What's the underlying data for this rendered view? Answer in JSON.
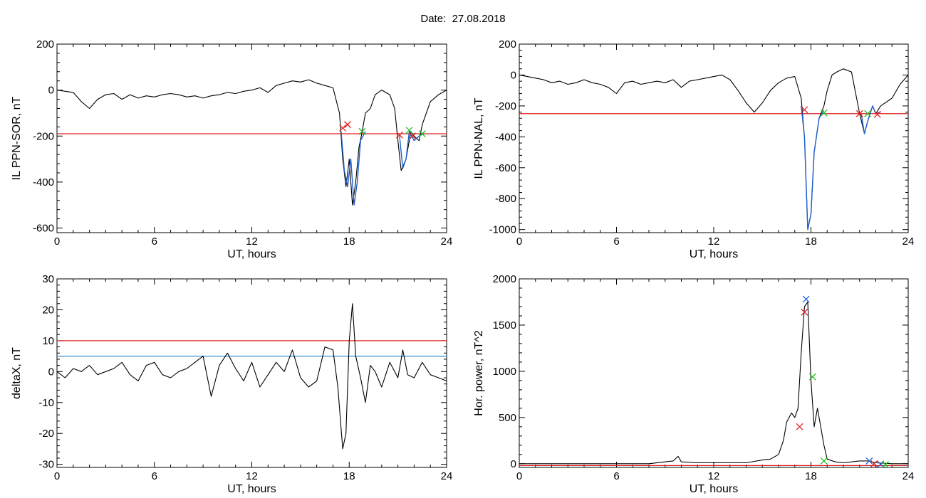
{
  "header": {
    "date_label": "Date:",
    "date_value": "27.08.2018"
  },
  "colors": {
    "trace": "#000000",
    "event": "#1f5fd0",
    "threshold_red": "#e02020",
    "threshold_blue": "#2a8fd0",
    "marker_red": "#e02020",
    "marker_green": "#20c020",
    "marker_blue": "#2060e0"
  },
  "chart_data": [
    {
      "type": "line",
      "xlabel": "UT, hours",
      "ylabel": "IL PPN-SOR, nT",
      "xlim": [
        0,
        24
      ],
      "ylim": [
        -620,
        200
      ],
      "xticks": [
        0,
        6,
        12,
        18,
        24
      ],
      "yticks": [
        200,
        0,
        -200,
        -400,
        -600
      ],
      "series": [
        {
          "color": "black",
          "x": [
            0,
            0.5,
            1,
            1.5,
            2,
            2.5,
            3,
            3.5,
            4,
            4.5,
            5,
            5.5,
            6,
            6.5,
            7,
            7.5,
            8,
            8.5,
            9,
            9.5,
            10,
            10.5,
            11,
            11.5,
            12,
            12.5,
            13,
            13.5,
            14,
            14.5,
            15,
            15.5,
            16,
            16.5,
            17,
            17.4,
            17.6,
            17.8,
            18,
            18.2,
            18.4,
            18.6,
            18.8,
            19,
            19.3,
            19.6,
            20,
            20.5,
            20.8,
            21,
            21.2,
            21.5,
            21.8,
            22,
            22.3,
            22.5,
            23,
            23.5,
            24
          ],
          "y": [
            0,
            -5,
            -10,
            -50,
            -80,
            -40,
            -20,
            -15,
            -40,
            -20,
            -35,
            -25,
            -30,
            -20,
            -15,
            -20,
            -30,
            -25,
            -35,
            -25,
            -20,
            -10,
            -15,
            -5,
            0,
            10,
            -10,
            20,
            30,
            40,
            35,
            45,
            30,
            20,
            10,
            -100,
            -300,
            -420,
            -300,
            -500,
            -400,
            -250,
            -180,
            -100,
            -80,
            -20,
            0,
            -20,
            -80,
            -220,
            -350,
            -300,
            -180,
            -200,
            -220,
            -150,
            -50,
            -20,
            0
          ]
        },
        {
          "color": "blue",
          "x": [
            17.5,
            17.7,
            17.9,
            18.1,
            18.3,
            18.5,
            18.7,
            19
          ],
          "y": [
            -180,
            -350,
            -420,
            -300,
            -500,
            -400,
            -220,
            -180
          ]
        },
        {
          "color": "blue",
          "x": [
            21.1,
            21.3,
            21.5,
            21.7,
            22,
            22.3,
            22.6
          ],
          "y": [
            -200,
            -340,
            -300,
            -180,
            -220,
            -200,
            -190
          ]
        }
      ],
      "hlines": [
        {
          "y": -190,
          "color": "red"
        }
      ],
      "markers": [
        {
          "x": 17.6,
          "y": -165,
          "color": "red"
        },
        {
          "x": 17.9,
          "y": -150,
          "color": "red"
        },
        {
          "x": 18.8,
          "y": -180,
          "color": "green"
        },
        {
          "x": 21.1,
          "y": -195,
          "color": "red"
        },
        {
          "x": 21.7,
          "y": -175,
          "color": "green"
        },
        {
          "x": 21.9,
          "y": -200,
          "color": "red"
        },
        {
          "x": 22.5,
          "y": -190,
          "color": "green"
        }
      ]
    },
    {
      "type": "line",
      "xlabel": "UT, hours",
      "ylabel": "IL PPN-NAL, nT",
      "xlim": [
        0,
        24
      ],
      "ylim": [
        -1020,
        200
      ],
      "xticks": [
        0,
        6,
        12,
        18,
        24
      ],
      "yticks": [
        200,
        0,
        -200,
        -400,
        -600,
        -800,
        -1000
      ],
      "series": [
        {
          "color": "black",
          "x": [
            0,
            0.5,
            1,
            1.5,
            2,
            2.5,
            3,
            3.5,
            4,
            4.5,
            5,
            5.5,
            6,
            6.5,
            7,
            7.5,
            8,
            8.5,
            9,
            9.5,
            10,
            10.5,
            11,
            11.5,
            12,
            12.5,
            13,
            13.5,
            14,
            14.5,
            15,
            15.5,
            16,
            16.5,
            17,
            17.4,
            17.6,
            17.8,
            18,
            18.2,
            18.5,
            18.8,
            19,
            19.3,
            19.6,
            20,
            20.5,
            21,
            21.3,
            21.5,
            21.8,
            22,
            22.3,
            23,
            23.5,
            24
          ],
          "y": [
            0,
            -10,
            -20,
            -30,
            -50,
            -40,
            -60,
            -50,
            -30,
            -50,
            -60,
            -80,
            -120,
            -50,
            -40,
            -60,
            -50,
            -40,
            -50,
            -30,
            -80,
            -40,
            -30,
            -20,
            -10,
            0,
            -30,
            -100,
            -180,
            -240,
            -180,
            -100,
            -50,
            -20,
            -10,
            -150,
            -400,
            -1000,
            -900,
            -500,
            -280,
            -200,
            -100,
            0,
            20,
            40,
            20,
            -250,
            -380,
            -300,
            -200,
            -250,
            -200,
            -150,
            -60,
            0
          ]
        },
        {
          "color": "blue",
          "x": [
            17.4,
            17.6,
            17.8,
            18,
            18.2,
            18.5,
            18.8
          ],
          "y": [
            -200,
            -400,
            -1000,
            -900,
            -500,
            -280,
            -230
          ]
        },
        {
          "color": "blue",
          "x": [
            21.1,
            21.3,
            21.5,
            21.8,
            22,
            22.3
          ],
          "y": [
            -250,
            -380,
            -300,
            -200,
            -250,
            -240
          ]
        }
      ],
      "hlines": [
        {
          "y": -250,
          "color": "red"
        }
      ],
      "markers": [
        {
          "x": 17.6,
          "y": -225,
          "color": "red"
        },
        {
          "x": 18.8,
          "y": -245,
          "color": "green"
        },
        {
          "x": 21.0,
          "y": -250,
          "color": "red"
        },
        {
          "x": 21.5,
          "y": -250,
          "color": "green"
        },
        {
          "x": 22.1,
          "y": -255,
          "color": "red"
        }
      ]
    },
    {
      "type": "line",
      "xlabel": "UT, hours",
      "ylabel": "deltaX, nT",
      "xlim": [
        0,
        24
      ],
      "ylim": [
        -31,
        30
      ],
      "xticks": [
        0,
        6,
        12,
        18,
        24
      ],
      "yticks": [
        30,
        20,
        10,
        0,
        -10,
        -20,
        -30
      ],
      "series": [
        {
          "color": "black",
          "x": [
            0,
            0.5,
            1,
            1.5,
            2,
            2.5,
            3,
            3.5,
            4,
            4.5,
            5,
            5.5,
            6,
            6.5,
            7,
            7.5,
            8,
            8.5,
            9,
            9.5,
            10,
            10.5,
            11,
            11.5,
            12,
            12.5,
            13,
            13.5,
            14,
            14.5,
            15,
            15.5,
            16,
            16.5,
            17,
            17.3,
            17.6,
            17.8,
            18,
            18.2,
            18.4,
            18.7,
            19,
            19.3,
            19.6,
            20,
            20.5,
            21,
            21.3,
            21.6,
            22,
            22.5,
            23,
            23.5,
            24
          ],
          "y": [
            0,
            -2,
            1,
            0,
            2,
            -1,
            0,
            1,
            3,
            -1,
            -3,
            2,
            3,
            -1,
            -2,
            0,
            1,
            3,
            5,
            -8,
            2,
            6,
            1,
            -3,
            3,
            -5,
            -1,
            3,
            0,
            7,
            -2,
            -5,
            -3,
            8,
            7,
            -5,
            -25,
            -20,
            10,
            22,
            5,
            -2,
            -10,
            2,
            0,
            -5,
            3,
            -2,
            7,
            -1,
            -2,
            3,
            -1,
            -2,
            -3
          ]
        }
      ],
      "hlines": [
        {
          "y": 10,
          "color": "red"
        },
        {
          "y": 5,
          "color": "blue"
        }
      ],
      "markers": []
    },
    {
      "type": "line",
      "xlabel": "UT, hours",
      "ylabel": "Hor. power, nT^2",
      "xlim": [
        0,
        24
      ],
      "ylim": [
        -40,
        2000
      ],
      "xticks": [
        0,
        6,
        12,
        18,
        24
      ],
      "yticks": [
        2000,
        1500,
        1000,
        500,
        0
      ],
      "series": [
        {
          "color": "black",
          "x": [
            0,
            1,
            2,
            3,
            4,
            5,
            6,
            7,
            8,
            9,
            9.5,
            9.8,
            10,
            11,
            12,
            13,
            14,
            15,
            15.5,
            16,
            16.3,
            16.5,
            16.8,
            17,
            17.2,
            17.4,
            17.6,
            17.8,
            18,
            18.2,
            18.4,
            18.6,
            18.8,
            19,
            19.5,
            20,
            21,
            21.5,
            22,
            23,
            24
          ],
          "y": [
            0,
            0,
            0,
            0,
            0,
            0,
            0,
            0,
            0,
            20,
            30,
            80,
            20,
            10,
            10,
            10,
            10,
            40,
            50,
            100,
            250,
            450,
            550,
            500,
            600,
            1200,
            1700,
            1750,
            900,
            400,
            600,
            400,
            200,
            50,
            20,
            10,
            30,
            30,
            10,
            0,
            0
          ]
        }
      ],
      "hlines": [
        {
          "y": -20,
          "color": "red"
        }
      ],
      "markers": [
        {
          "x": 17.7,
          "y": 1780,
          "color": "blue"
        },
        {
          "x": 17.6,
          "y": 1640,
          "color": "red"
        },
        {
          "x": 18.1,
          "y": 940,
          "color": "green"
        },
        {
          "x": 17.3,
          "y": 400,
          "color": "red"
        },
        {
          "x": 18.8,
          "y": 30,
          "color": "green"
        },
        {
          "x": 21.6,
          "y": 30,
          "color": "blue"
        },
        {
          "x": 21.9,
          "y": 0,
          "color": "red"
        },
        {
          "x": 22.3,
          "y": -5,
          "color": "blue"
        },
        {
          "x": 22.6,
          "y": -10,
          "color": "green"
        }
      ]
    }
  ]
}
